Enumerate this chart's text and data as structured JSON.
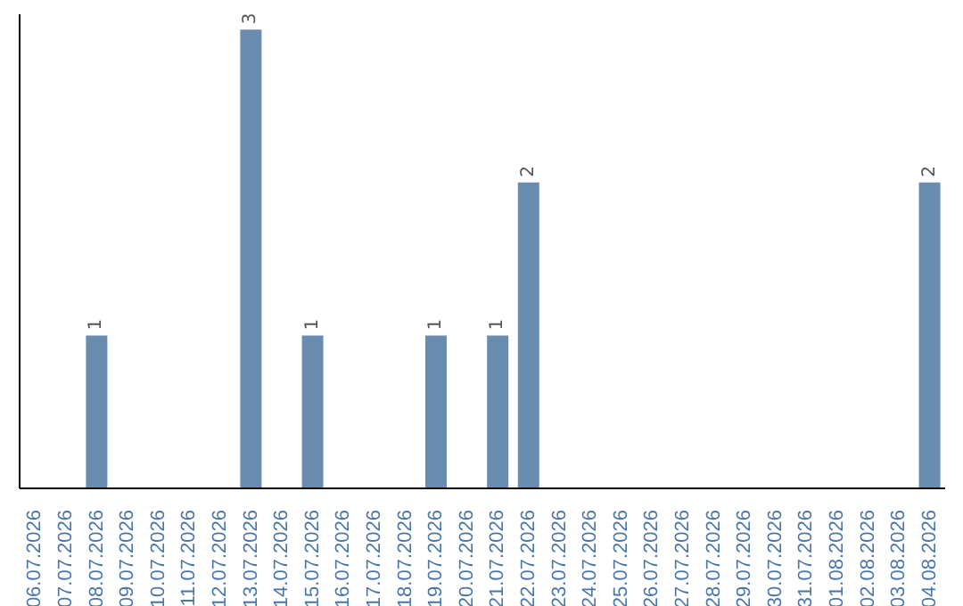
{
  "chart_data": {
    "type": "bar",
    "categories": [
      "06.07.2026",
      "07.07.2026",
      "08.07.2026",
      "09.07.2026",
      "10.07.2026",
      "11.07.2026",
      "12.07.2026",
      "13.07.2026",
      "14.07.2026",
      "15.07.2026",
      "16.07.2026",
      "17.07.2026",
      "18.07.2026",
      "19.07.2026",
      "20.07.2026",
      "21.07.2026",
      "22.07.2026",
      "23.07.2026",
      "24.07.2026",
      "25.07.2026",
      "26.07.2026",
      "27.07.2026",
      "28.07.2026",
      "29.07.2026",
      "30.07.2026",
      "31.07.2026",
      "01.08.2026",
      "02.08.2026",
      "03.08.2026",
      "04.08.2026"
    ],
    "values": [
      0,
      0,
      1,
      0,
      0,
      0,
      0,
      3,
      0,
      1,
      0,
      0,
      0,
      1,
      0,
      1,
      2,
      0,
      0,
      0,
      0,
      0,
      0,
      0,
      0,
      0,
      0,
      0,
      0,
      2
    ],
    "value_labels": [
      null,
      null,
      "1",
      null,
      null,
      null,
      null,
      "3",
      null,
      "1",
      null,
      null,
      null,
      "1",
      null,
      "1",
      "2",
      null,
      null,
      null,
      null,
      null,
      null,
      null,
      null,
      null,
      null,
      null,
      null,
      "2"
    ],
    "color": "#6a8caf",
    "ylim": [
      0,
      3.1
    ],
    "tick_labels": "x"
  }
}
